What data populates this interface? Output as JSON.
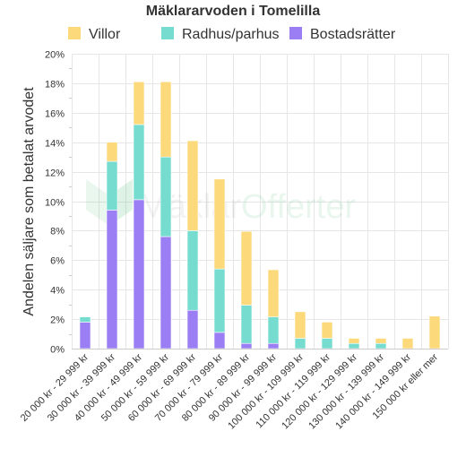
{
  "chart_data": {
    "type": "bar",
    "stacked": true,
    "title": "Mäklararvoden i Tomelilla",
    "ylabel": "Andelen säljare som betalat arvodet",
    "xlabel": "",
    "ylim": [
      0,
      20
    ],
    "yticks": [
      "0%",
      "2%",
      "4%",
      "6%",
      "8%",
      "10%",
      "12%",
      "14%",
      "16%",
      "18%",
      "20%"
    ],
    "grid": true,
    "legend_position": "top",
    "categories": [
      "20 000 kr - 29 999 kr",
      "30 000 kr - 39 999 kr",
      "40 000 kr - 49 999 kr",
      "50 000 kr - 59 999 kr",
      "60 000 kr - 69 999 kr",
      "70 000 kr - 79 999 kr",
      "80 000 kr - 89 999 kr",
      "90 000 kr - 99 999 kr",
      "100 000 kr - 109 999 kr",
      "110 000 kr - 119 999 kr",
      "120 000 kr - 129 999 kr",
      "130 000 kr - 139 999 kr",
      "140 000 kr - 149 999 kr",
      "150 000 kr eller mer"
    ],
    "series": [
      {
        "name": "Bostadsrätter",
        "color": "#9b7ef3",
        "values": [
          1.8,
          9.4,
          10.1,
          7.6,
          2.6,
          1.1,
          0.35,
          0.35,
          0,
          0,
          0,
          0,
          0,
          0
        ]
      },
      {
        "name": "Radhus/parhus",
        "color": "#76dcd0",
        "values": [
          0.35,
          3.3,
          5.1,
          5.4,
          5.4,
          4.3,
          2.6,
          1.8,
          0.7,
          0.7,
          0.35,
          0.35,
          0,
          0
        ]
      },
      {
        "name": "Villor",
        "color": "#fcd97a",
        "values": [
          0,
          1.3,
          2.9,
          5.1,
          6.1,
          6.1,
          5.0,
          3.2,
          1.8,
          1.1,
          0.35,
          0.35,
          0.7,
          2.2
        ]
      }
    ],
    "legend_order": [
      "Villor",
      "Radhus/parhus",
      "Bostadsrätter"
    ]
  },
  "watermark": {
    "text_main": "Mäklar",
    "text_accent": "Offerter"
  }
}
